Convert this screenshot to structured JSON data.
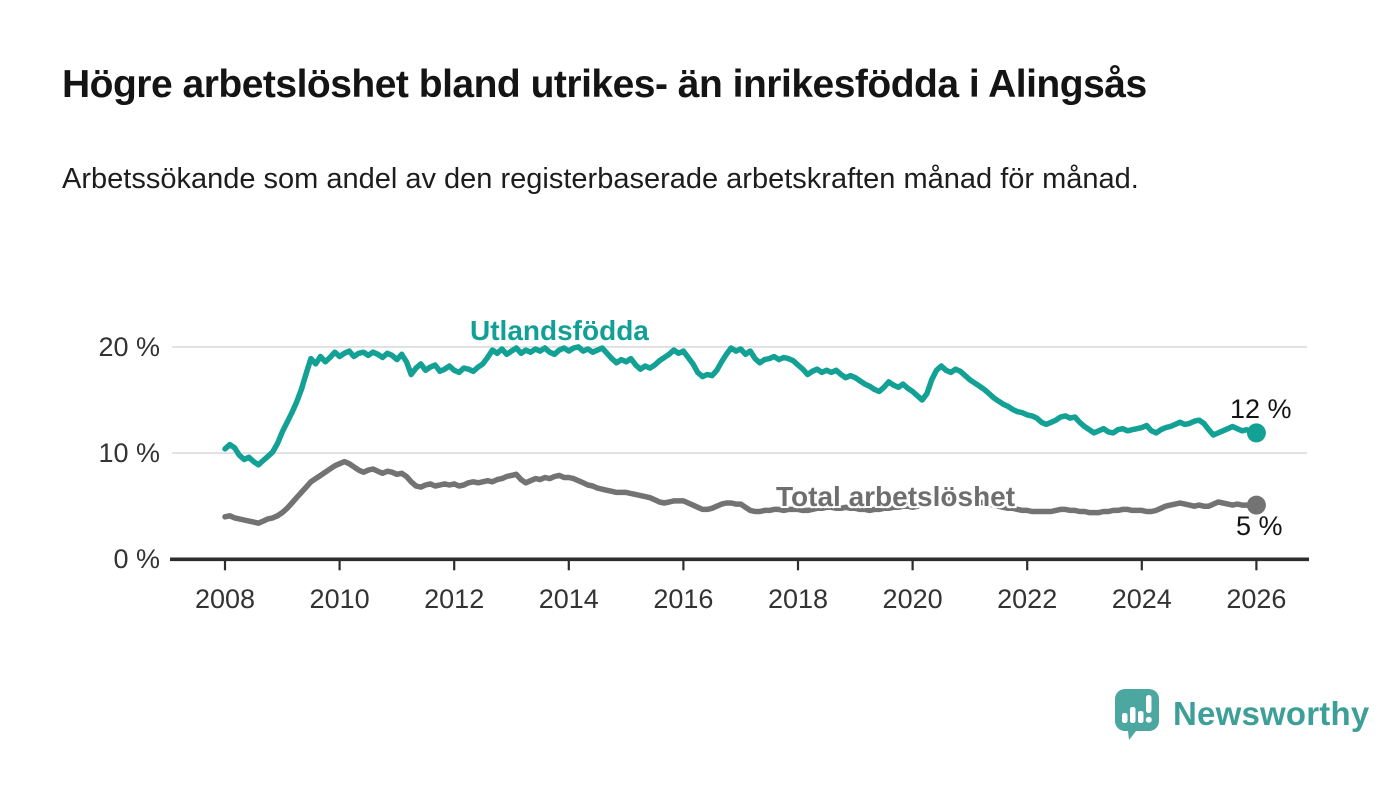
{
  "header": {
    "title": "Högre arbetslöshet bland utrikes- än inrikesfödda i Alingsås",
    "subtitle": "Arbetssökande som andel av den registerbaserade arbetskraften månad för månad."
  },
  "chart_data": {
    "type": "line",
    "title": "Högre arbetslöshet bland utrikes- än inrikesfödda i Alingsås",
    "subtitle": "Arbetssökande som andel av den registerbaserade arbetskraften månad för månad.",
    "unit": "%",
    "grid": "horizontal",
    "legend_position": "inline-labels",
    "x_start_year": 2008,
    "x_step_months": 1,
    "xlim": [
      2007.1,
      2026.9
    ],
    "ylim": [
      0,
      21.5
    ],
    "x_ticks": [
      2008,
      2010,
      2012,
      2014,
      2016,
      2018,
      2020,
      2022,
      2024,
      2026
    ],
    "x_tick_labels": [
      "2008",
      "2010",
      "2012",
      "2014",
      "2016",
      "2018",
      "2020",
      "2022",
      "2024",
      "2026"
    ],
    "y_ticks": [
      0,
      10,
      20
    ],
    "y_tick_labels": [
      "0 %",
      "10 %",
      "20 %"
    ],
    "axis_color": "#2d2d2d",
    "gridline_color": "#dcdcdc",
    "series": [
      {
        "name": "Utlandsfödda",
        "color": "#14a195",
        "label_color": "#12a096",
        "end_label": "12 %",
        "end_value": 11.9,
        "values": [
          10.4,
          10.8,
          10.5,
          9.8,
          9.4,
          9.6,
          9.2,
          8.9,
          9.3,
          9.7,
          10.1,
          10.9,
          12.0,
          12.9,
          13.8,
          14.8,
          16.0,
          17.5,
          18.9,
          18.4,
          19.1,
          18.6,
          19.0,
          19.5,
          19.1,
          19.4,
          19.6,
          19.1,
          19.4,
          19.5,
          19.2,
          19.5,
          19.3,
          19.0,
          19.4,
          19.2,
          18.8,
          19.3,
          18.6,
          17.4,
          18.0,
          18.4,
          17.8,
          18.1,
          18.3,
          17.7,
          17.9,
          18.2,
          17.8,
          17.6,
          18.0,
          17.9,
          17.7,
          18.1,
          18.4,
          19.0,
          19.7,
          19.4,
          19.8,
          19.3,
          19.6,
          19.9,
          19.4,
          19.7,
          19.5,
          19.8,
          19.6,
          19.9,
          19.5,
          19.3,
          19.7,
          19.9,
          19.6,
          19.9,
          20.0,
          19.6,
          19.8,
          19.5,
          19.7,
          19.9,
          19.4,
          18.9,
          18.5,
          18.8,
          18.6,
          18.9,
          18.3,
          17.9,
          18.2,
          18.0,
          18.3,
          18.7,
          19.0,
          19.3,
          19.7,
          19.4,
          19.6,
          19.0,
          18.4,
          17.6,
          17.2,
          17.4,
          17.3,
          17.8,
          18.6,
          19.3,
          19.9,
          19.6,
          19.8,
          19.3,
          19.6,
          18.9,
          18.5,
          18.8,
          18.9,
          19.1,
          18.8,
          19.0,
          18.9,
          18.7,
          18.3,
          17.9,
          17.4,
          17.7,
          17.9,
          17.6,
          17.8,
          17.6,
          17.8,
          17.4,
          17.1,
          17.3,
          17.1,
          16.8,
          16.5,
          16.3,
          16.0,
          15.8,
          16.2,
          16.7,
          16.4,
          16.2,
          16.5,
          16.1,
          15.8,
          15.4,
          15.0,
          15.6,
          16.9,
          17.8,
          18.2,
          17.8,
          17.6,
          17.9,
          17.7,
          17.3,
          16.9,
          16.6,
          16.3,
          16.0,
          15.6,
          15.2,
          14.9,
          14.6,
          14.4,
          14.1,
          13.9,
          13.8,
          13.6,
          13.5,
          13.3,
          12.9,
          12.7,
          12.9,
          13.1,
          13.4,
          13.5,
          13.3,
          13.4,
          12.9,
          12.5,
          12.2,
          11.9,
          12.1,
          12.3,
          12.0,
          11.9,
          12.2,
          12.3,
          12.1,
          12.2,
          12.3,
          12.4,
          12.6,
          12.1,
          11.9,
          12.2,
          12.4,
          12.5,
          12.7,
          12.9,
          12.7,
          12.8,
          13.0,
          13.1,
          12.8,
          12.2,
          11.7,
          11.9,
          12.1,
          12.3,
          12.5,
          12.3,
          12.1,
          12.2,
          12.0,
          11.9
        ]
      },
      {
        "name": "Total arbetslöshet",
        "color": "#737373",
        "label_color": "#6e6e6e",
        "end_label": "5 %",
        "end_value": 5.1,
        "values": [
          4.0,
          4.1,
          3.9,
          3.8,
          3.7,
          3.6,
          3.5,
          3.4,
          3.6,
          3.8,
          3.9,
          4.1,
          4.4,
          4.8,
          5.3,
          5.8,
          6.3,
          6.8,
          7.3,
          7.6,
          7.9,
          8.2,
          8.5,
          8.8,
          9.0,
          9.2,
          9.0,
          8.7,
          8.4,
          8.2,
          8.4,
          8.5,
          8.3,
          8.1,
          8.3,
          8.2,
          8.0,
          8.1,
          7.8,
          7.3,
          6.9,
          6.8,
          7.0,
          7.1,
          6.9,
          7.0,
          7.1,
          7.0,
          7.1,
          6.9,
          7.0,
          7.2,
          7.3,
          7.2,
          7.3,
          7.4,
          7.3,
          7.5,
          7.6,
          7.8,
          7.9,
          8.0,
          7.5,
          7.2,
          7.4,
          7.6,
          7.5,
          7.7,
          7.6,
          7.8,
          7.9,
          7.7,
          7.7,
          7.6,
          7.4,
          7.2,
          7.0,
          6.9,
          6.7,
          6.6,
          6.5,
          6.4,
          6.3,
          6.3,
          6.3,
          6.2,
          6.1,
          6.0,
          5.9,
          5.8,
          5.6,
          5.4,
          5.3,
          5.4,
          5.5,
          5.5,
          5.5,
          5.3,
          5.1,
          4.9,
          4.7,
          4.7,
          4.8,
          5.0,
          5.2,
          5.3,
          5.3,
          5.2,
          5.2,
          4.9,
          4.6,
          4.5,
          4.5,
          4.6,
          4.6,
          4.7,
          4.7,
          4.6,
          4.7,
          4.7,
          4.7,
          4.6,
          4.6,
          4.7,
          4.8,
          4.8,
          4.9,
          4.9,
          4.8,
          4.8,
          4.9,
          4.8,
          4.8,
          4.7,
          4.7,
          4.6,
          4.7,
          4.7,
          4.8,
          4.8,
          4.9,
          4.9,
          5.0,
          5.0,
          4.9,
          5.0,
          5.2,
          5.6,
          5.8,
          5.9,
          5.9,
          5.8,
          5.7,
          5.7,
          5.6,
          5.6,
          5.6,
          5.5,
          5.4,
          5.3,
          5.2,
          5.1,
          5.0,
          4.9,
          4.8,
          4.8,
          4.7,
          4.6,
          4.6,
          4.5,
          4.5,
          4.5,
          4.5,
          4.5,
          4.6,
          4.7,
          4.7,
          4.6,
          4.6,
          4.5,
          4.5,
          4.4,
          4.4,
          4.4,
          4.5,
          4.5,
          4.6,
          4.6,
          4.7,
          4.7,
          4.6,
          4.6,
          4.6,
          4.5,
          4.5,
          4.6,
          4.8,
          5.0,
          5.1,
          5.2,
          5.3,
          5.2,
          5.1,
          5.0,
          5.1,
          5.0,
          5.0,
          5.2,
          5.4,
          5.3,
          5.2,
          5.1,
          5.2,
          5.1,
          5.1,
          5.1,
          5.1
        ]
      }
    ]
  },
  "footer": {
    "brand": "Newsworthy",
    "brand_color": "#3d9f98",
    "logo_color": "#4ba7a0"
  }
}
